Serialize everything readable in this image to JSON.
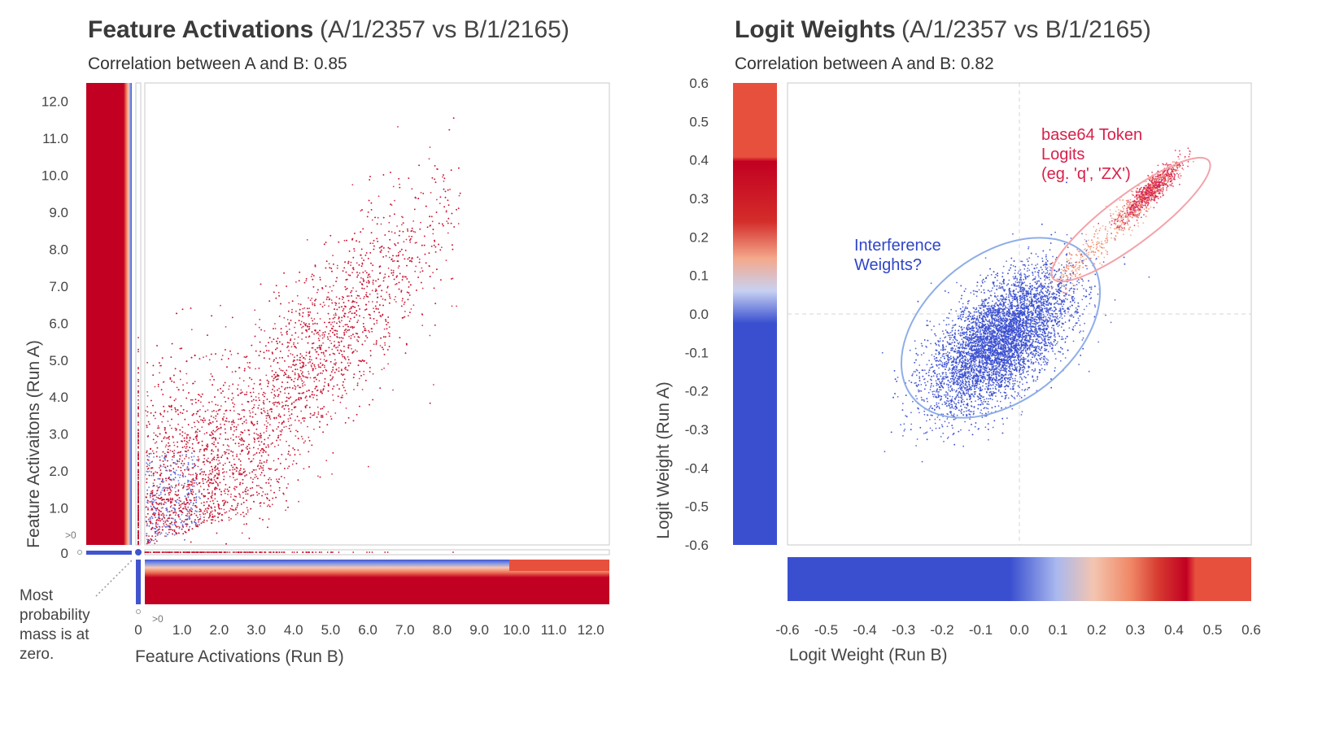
{
  "chart_data": [
    {
      "type": "scatter",
      "title": "Feature Activations",
      "subtitle": "(A/1/2357 vs B/1/2165)",
      "correlation_text": "Correlation between A and B: 0.85",
      "xlabel": "Feature Activations (Run B)",
      "ylabel": "Feature Activaitons (Run A)",
      "xlim": [
        0,
        12.5
      ],
      "ylim": [
        0,
        12.5
      ],
      "x_ticks": [
        "0",
        "1.0",
        "2.0",
        "3.0",
        "4.0",
        "5.0",
        "6.0",
        "7.0",
        "8.0",
        "9.0",
        "10.0",
        "11.0",
        "12.0"
      ],
      "y_ticks": [
        "0",
        "1.0",
        "2.0",
        "3.0",
        "4.0",
        "5.0",
        "6.0",
        "7.0",
        "8.0",
        "9.0",
        "10.0",
        "11.0",
        "12.0"
      ],
      "zero_marker_label": ">0",
      "annotation": [
        "Most",
        "probability",
        "mass is at",
        "zero."
      ],
      "point_color": "#c8102e",
      "distribution": {
        "center": [
          4.5,
          5.0
        ],
        "spread": [
          1.9,
          2.3
        ],
        "correlation": 0.85,
        "x_range": [
          0,
          8.5
        ],
        "y_range": [
          0,
          11.8
        ],
        "dense_near_origin": true
      }
    },
    {
      "type": "scatter",
      "title": "Logit Weights",
      "subtitle": "(A/1/2357 vs B/1/2165)",
      "correlation_text": "Correlation between A and B: 0.82",
      "xlabel": "Logit Weight (Run B)",
      "ylabel": "Logit Weight (Run A)",
      "xlim": [
        -0.6,
        0.6
      ],
      "ylim": [
        -0.6,
        0.6
      ],
      "x_ticks": [
        "-0.6",
        "-0.5",
        "-0.4",
        "-0.3",
        "-0.2",
        "-0.1",
        "0.0",
        "0.1",
        "0.2",
        "0.3",
        "0.4",
        "0.5",
        "0.6"
      ],
      "y_ticks": [
        "0.6",
        "0.5",
        "0.4",
        "0.3",
        "0.2",
        "0.1",
        "0.0",
        "-0.1",
        "-0.2",
        "-0.3",
        "-0.4",
        "-0.5",
        "-0.6"
      ],
      "clusters": [
        {
          "name": "Interference Weights?",
          "color": "#3a4fd0",
          "center": [
            -0.05,
            -0.07
          ],
          "spread": [
            0.09,
            0.09
          ],
          "correlation": 0.6
        },
        {
          "name": "base64 Token Logits (eg. 'q', 'ZX')",
          "color": "#d8204a",
          "center": [
            0.34,
            0.32
          ],
          "spread": [
            0.04,
            0.04
          ],
          "correlation": 0.9
        }
      ],
      "annotations": {
        "blue": [
          "Interference",
          "Weights?"
        ],
        "red": [
          "base64 Token",
          "Logits",
          "(eg. 'q', 'ZX')"
        ]
      }
    }
  ]
}
